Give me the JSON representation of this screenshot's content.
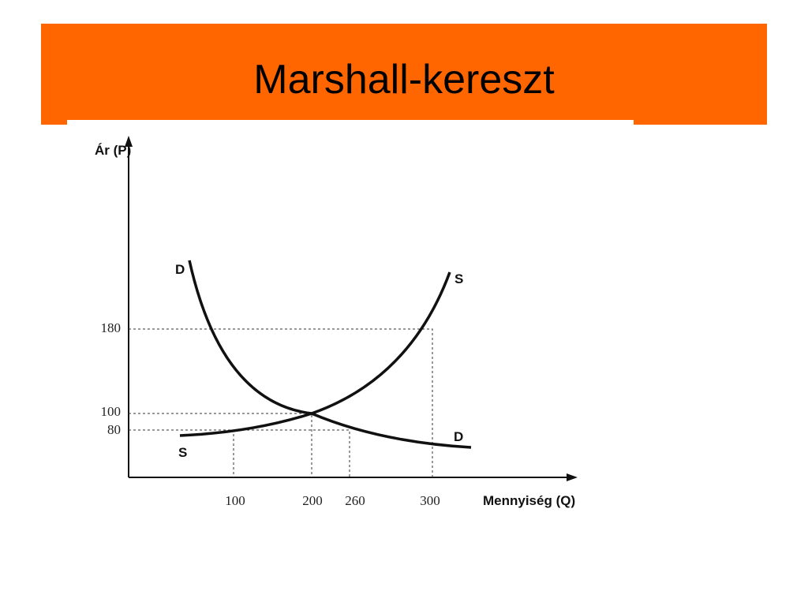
{
  "title": "Marshall-kereszt",
  "diagram": {
    "y_axis_label": "Ár (P)",
    "x_axis_label": "Mennyiség (Q)",
    "y_ticks": [
      180,
      100,
      80
    ],
    "x_ticks": [
      100,
      200,
      260,
      300
    ],
    "curve_labels": [
      "D",
      "S",
      "S",
      "D"
    ]
  }
}
